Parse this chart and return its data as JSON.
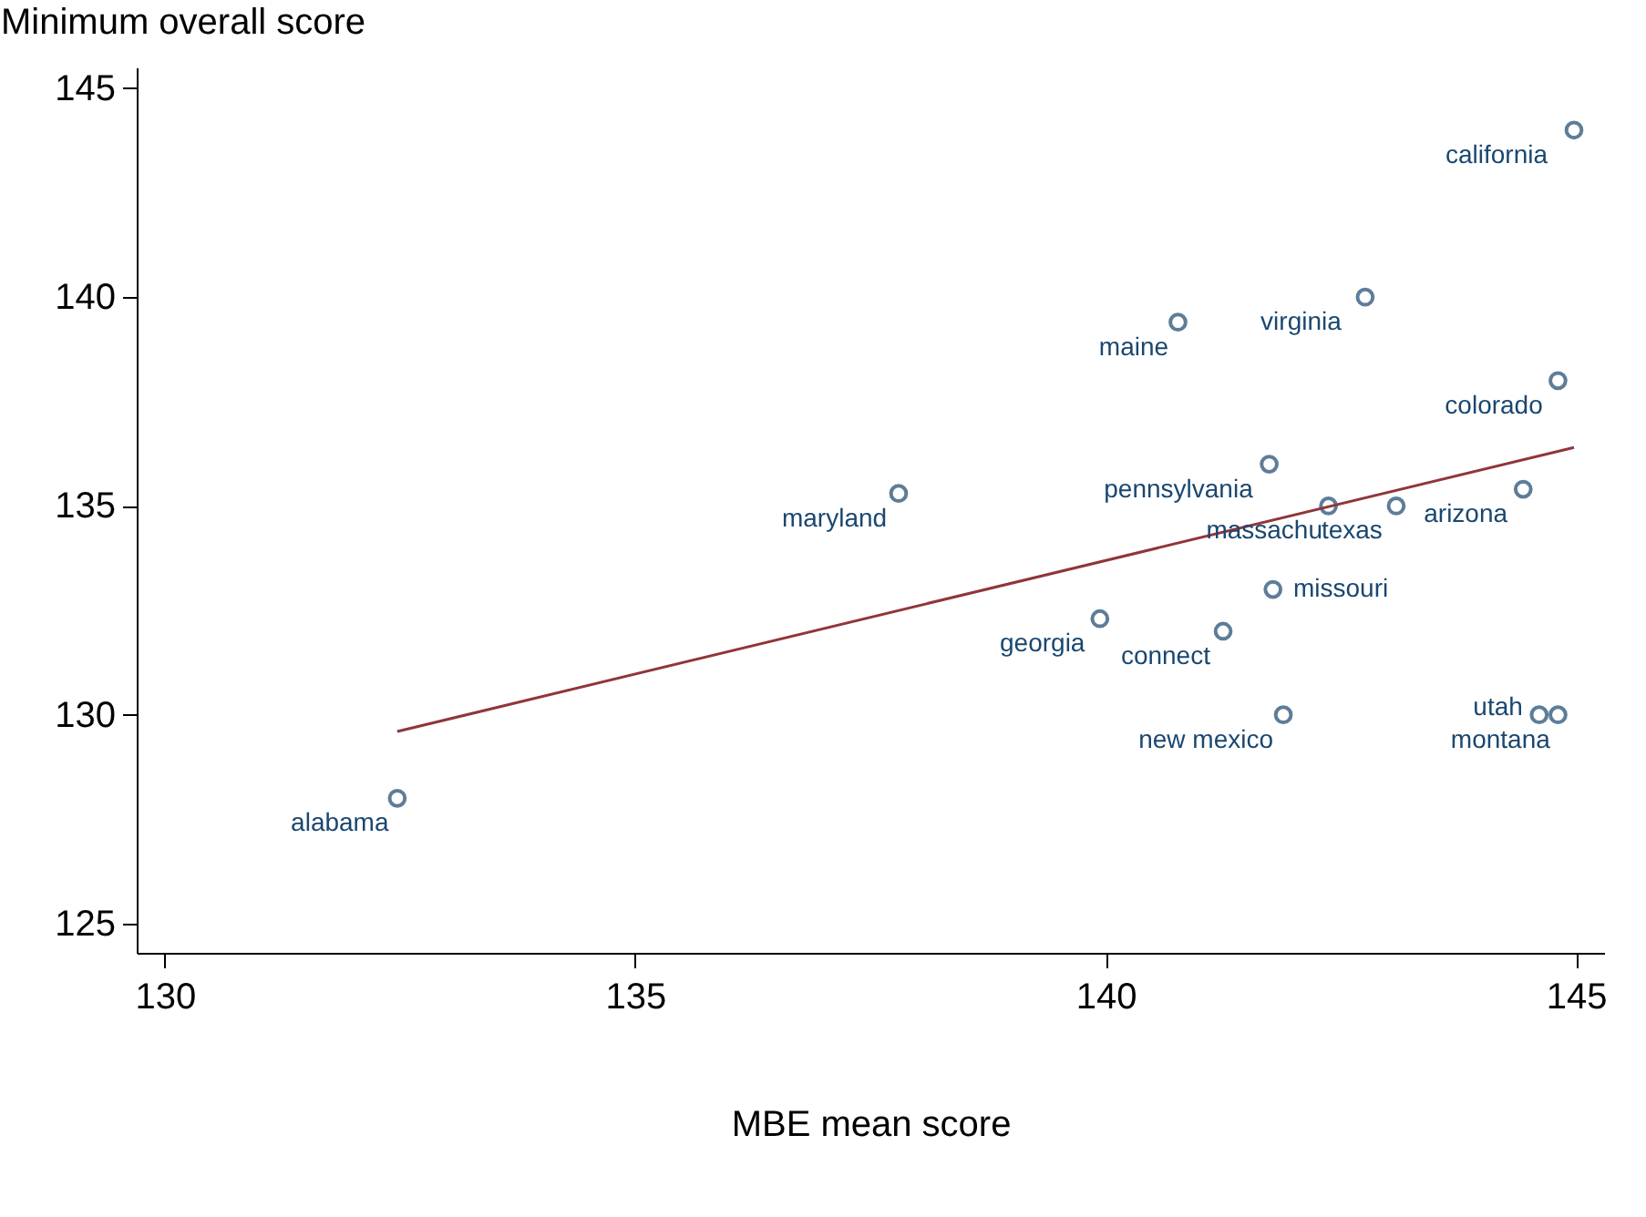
{
  "chart_data": {
    "type": "scatter",
    "xlabel": "MBE mean score",
    "ylabel": "Minimum overall score",
    "marker": "circle",
    "xlim": [
      129.7,
      145.3
    ],
    "ylim": [
      124.3,
      145.5
    ],
    "xticks": [
      130,
      135,
      140,
      145
    ],
    "yticks": [
      125,
      130,
      135,
      140,
      145
    ],
    "series": [
      {
        "color": "#1a476f",
        "x": [
          144.98,
          142.76,
          140.77,
          144.81,
          144.44,
          141.74,
          137.8,
          143.09,
          142.37,
          141.78,
          141.25,
          139.94,
          141.89,
          144.81,
          144.61,
          132.47
        ],
        "values": [
          144,
          140,
          139.4,
          138,
          135.4,
          136,
          135.3,
          135,
          135,
          133,
          132,
          132.3,
          130,
          130,
          130,
          128
        ]
      },
      {
        "type": "line",
        "marker": "none",
        "color": "#90353b",
        "x": [
          132.47,
          144.98
        ],
        "values": [
          129.6,
          136.4
        ]
      }
    ],
    "annotations": [
      {
        "text": "california",
        "x": 144.98,
        "y": 144
      },
      {
        "text": "virginia",
        "x": 142.76,
        "y": 140
      },
      {
        "text": "maine",
        "x": 140.77,
        "y": 139.4
      },
      {
        "text": "colorado",
        "x": 144.81,
        "y": 138
      },
      {
        "text": "arizona",
        "x": 144.44,
        "y": 135.4
      },
      {
        "text": "pennsylvania",
        "x": 141.74,
        "y": 136
      },
      {
        "text": "maryland",
        "x": 137.8,
        "y": 135.3
      },
      {
        "text": "texas",
        "x": 143.09,
        "y": 135
      },
      {
        "text": "massachu",
        "x": 142.37,
        "y": 135
      },
      {
        "text": "missouri",
        "x": 141.78,
        "y": 133
      },
      {
        "text": "connect",
        "x": 141.25,
        "y": 132
      },
      {
        "text": "georgia",
        "x": 139.94,
        "y": 132.3
      },
      {
        "text": "new mexico",
        "x": 141.89,
        "y": 130
      },
      {
        "text": "montana",
        "x": 144.81,
        "y": 130
      },
      {
        "text": "utah",
        "x": 144.61,
        "y": 130
      },
      {
        "text": "alabama",
        "x": 132.47,
        "y": 128
      }
    ]
  }
}
